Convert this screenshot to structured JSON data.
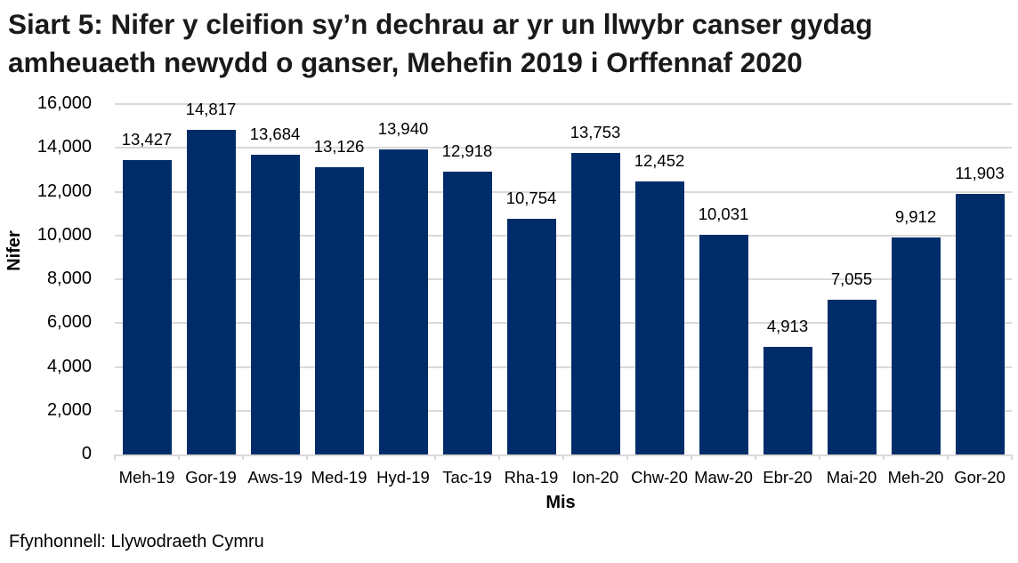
{
  "title": "Siart 5: Nifer y cleifion sy’n dechrau ar yr un llwybr canser gydag amheuaeth newydd o ganser, Mehefin 2019 i Orffennaf 2020",
  "source": "Ffynhonnell: Llywodraeth Cymru",
  "colors": {
    "bar": "#002d6a",
    "grid": "#d9d9d9"
  },
  "chart_data": {
    "type": "bar",
    "title": "Siart 5: Nifer y cleifion sy’n dechrau ar yr un llwybr canser gydag amheuaeth newydd o ganser, Mehefin 2019 i Orffennaf 2020",
    "xlabel": "Mis",
    "ylabel": "Nifer",
    "ylim": [
      0,
      16000
    ],
    "yticks": [
      "0",
      "2,000",
      "4,000",
      "6,000",
      "8,000",
      "10,000",
      "12,000",
      "14,000",
      "16,000"
    ],
    "grid": true,
    "legend": null,
    "categories": [
      "Meh-19",
      "Gor-19",
      "Aws-19",
      "Med-19",
      "Hyd-19",
      "Tac-19",
      "Rha-19",
      "Ion-20",
      "Chw-20",
      "Maw-20",
      "Ebr-20",
      "Mai-20",
      "Meh-20",
      "Gor-20"
    ],
    "values": [
      13427,
      14817,
      13684,
      13126,
      13940,
      12918,
      10754,
      13753,
      12452,
      10031,
      4913,
      7055,
      9912,
      11903
    ],
    "data_labels": [
      "13,427",
      "14,817",
      "13,684",
      "13,126",
      "13,940",
      "12,918",
      "10,754",
      "13,753",
      "12,452",
      "10,031",
      "4,913",
      "7,055",
      "9,912",
      "11,903"
    ]
  }
}
